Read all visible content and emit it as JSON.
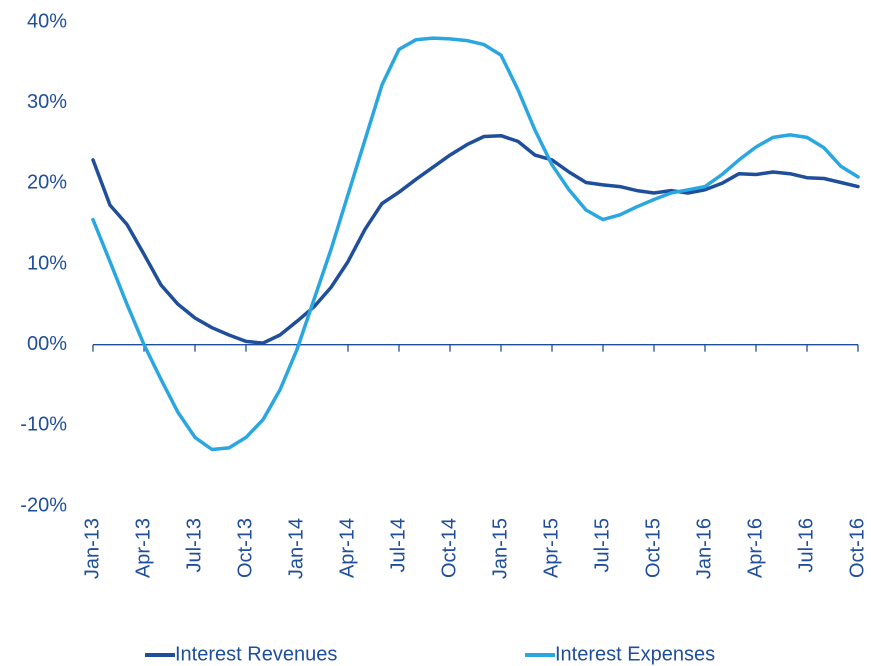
{
  "chart_data": {
    "type": "line",
    "categories": [
      "Jan-13",
      null,
      null,
      "Apr-13",
      null,
      null,
      "Jul-13",
      null,
      null,
      "Oct-13",
      null,
      null,
      "Jan-14",
      null,
      null,
      "Apr-14",
      null,
      null,
      "Jul-14",
      null,
      null,
      "Oct-14",
      null,
      null,
      "Jan-15",
      null,
      null,
      "Apr-15",
      null,
      null,
      "Jul-15",
      null,
      null,
      "Oct-15",
      null,
      null,
      "Jan-16",
      null,
      null,
      "Apr-16",
      null,
      null,
      "Jul-16",
      null,
      null,
      "Oct-16"
    ],
    "series": [
      {
        "name": "Interest Revenues",
        "color": "#1f4e9a",
        "values": [
          22.9,
          17.3,
          14.9,
          11.2,
          7.4,
          5.0,
          3.3,
          2.1,
          1.2,
          0.4,
          0.2,
          1.2,
          2.9,
          4.7,
          7.1,
          10.3,
          14.3,
          17.5,
          18.9,
          20.5,
          22.0,
          23.5,
          24.8,
          25.8,
          25.9,
          25.2,
          23.5,
          22.9,
          21.4,
          20.1,
          19.8,
          19.6,
          19.1,
          18.8,
          19.1,
          18.8,
          19.2,
          20.0,
          21.2,
          21.1,
          21.4,
          21.2,
          20.7,
          20.6,
          20.1,
          19.6
        ]
      },
      {
        "name": "Interest Expenses",
        "color": "#2aa6e0",
        "values": [
          15.5,
          10.3,
          5.0,
          0.0,
          -4.3,
          -8.4,
          -11.5,
          -13.0,
          -12.8,
          -11.5,
          -9.3,
          -5.6,
          -0.6,
          5.6,
          11.8,
          18.6,
          25.4,
          32.2,
          36.6,
          37.8,
          38.0,
          37.9,
          37.7,
          37.2,
          35.9,
          31.6,
          26.6,
          22.3,
          19.2,
          16.7,
          15.5,
          16.1,
          17.1,
          18.0,
          18.8,
          19.2,
          19.6,
          21.1,
          22.9,
          24.5,
          25.7,
          26.0,
          25.7,
          24.4,
          22.1,
          20.8
        ]
      }
    ],
    "ylim": [
      -20,
      40
    ],
    "yticks": [
      {
        "value": -20,
        "label": "-20%"
      },
      {
        "value": -10,
        "label": "-10%"
      },
      {
        "value": 0,
        "label": "00%"
      },
      {
        "value": 10,
        "label": "10%"
      },
      {
        "value": 20,
        "label": "20%"
      },
      {
        "value": 30,
        "label": "30%"
      },
      {
        "value": 40,
        "label": "40%"
      }
    ],
    "legend": "bottom"
  }
}
